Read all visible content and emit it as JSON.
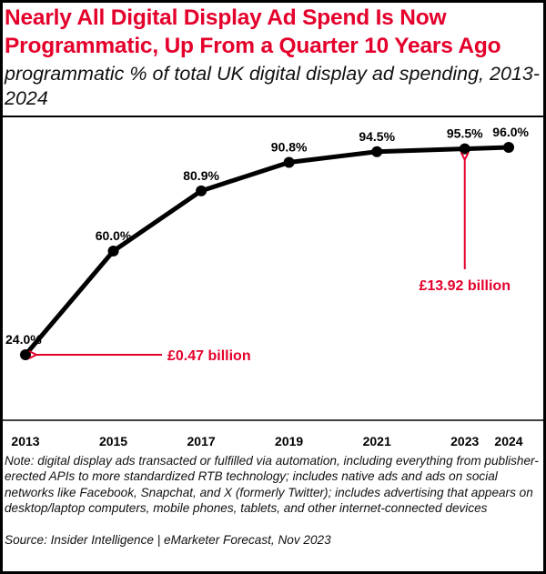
{
  "header": {
    "title": "Nearly All Digital Display Ad Spend Is Now Programmatic, Up From a Quarter 10 Years Ago",
    "subtitle": "programmatic % of total UK digital display ad spending, 2013-2024"
  },
  "chart_data": {
    "type": "line",
    "title": "Nearly All Digital Display Ad Spend Is Now Programmatic, Up From a Quarter 10 Years Ago",
    "subtitle": "programmatic % of total UK digital display ad spending, 2013-2024",
    "xlabel": "",
    "ylabel": "",
    "categories": [
      "2013",
      "2015",
      "2017",
      "2019",
      "2021",
      "2023",
      "2024"
    ],
    "x": [
      2013,
      2015,
      2017,
      2019,
      2021,
      2023,
      2024
    ],
    "series": [
      {
        "name": "programmatic % of total UK digital display ad spending",
        "values": [
          24.0,
          60.0,
          80.9,
          90.8,
          94.5,
          95.5,
          96.0
        ],
        "labels": [
          "24.0%",
          "60.0%",
          "80.9%",
          "90.8%",
          "94.5%",
          "95.5%",
          "96.0%"
        ]
      }
    ],
    "ylim": [
      0,
      100
    ],
    "grid": false,
    "annotations": [
      {
        "text": "£0.47 billion",
        "x": 2013,
        "y": 24.0,
        "direction": "left"
      },
      {
        "text": "£13.92 billion",
        "x": 2023,
        "y": 95.5,
        "direction": "up"
      }
    ],
    "colors": {
      "line": "#000000",
      "accent": "#e4002b"
    }
  },
  "footer": {
    "note": "Note: digital display ads transacted or fulfilled via automation, including everything from publisher-erected APIs to more standardized RTB technology; includes native ads and ads on social networks like Facebook, Snapchat, and X (formerly Twitter); includes advertising that appears on desktop/laptop computers, mobile phones, tablets, and other internet-connected devices",
    "source": "Source: Insider Intelligence | eMarketer Forecast, Nov 2023"
  }
}
